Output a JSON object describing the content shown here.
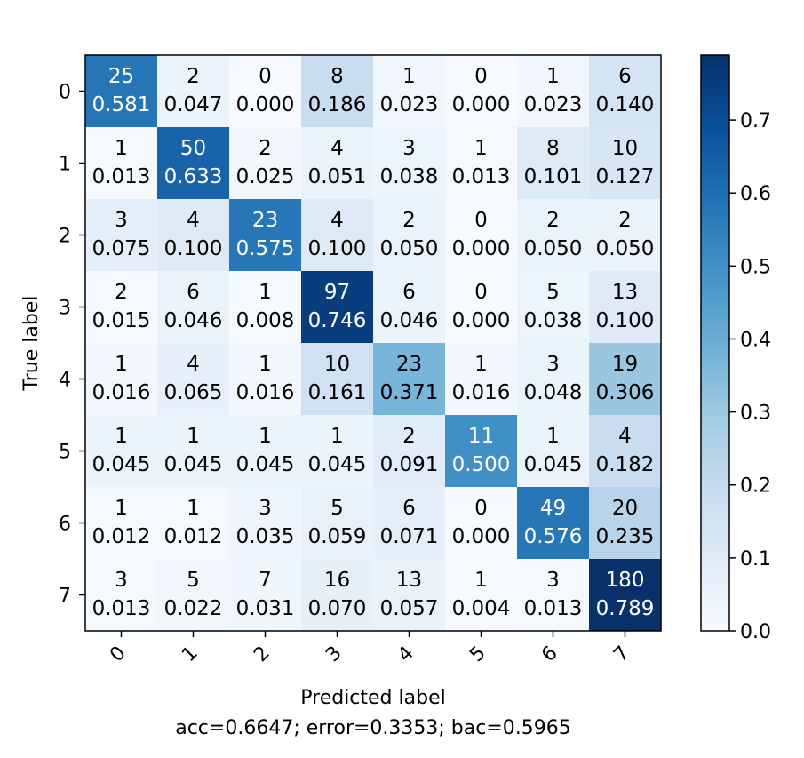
{
  "chart_data": {
    "type": "heatmap",
    "title": "",
    "xlabel": "Predicted label",
    "ylabel": "True label",
    "caption": "acc=0.6647; error=0.3353; bac=0.5965",
    "x_tick_labels": [
      "0",
      "1",
      "2",
      "3",
      "4",
      "5",
      "6",
      "7"
    ],
    "y_tick_labels": [
      "0",
      "1",
      "2",
      "3",
      "4",
      "5",
      "6",
      "7"
    ],
    "counts": [
      [
        25,
        2,
        0,
        8,
        1,
        0,
        1,
        6
      ],
      [
        1,
        50,
        2,
        4,
        3,
        1,
        8,
        10
      ],
      [
        3,
        4,
        23,
        4,
        2,
        0,
        2,
        2
      ],
      [
        2,
        6,
        1,
        97,
        6,
        0,
        5,
        13
      ],
      [
        1,
        4,
        1,
        10,
        23,
        1,
        3,
        19
      ],
      [
        1,
        1,
        1,
        1,
        2,
        11,
        1,
        4
      ],
      [
        1,
        1,
        3,
        5,
        6,
        0,
        49,
        20
      ],
      [
        3,
        5,
        7,
        16,
        13,
        1,
        3,
        180
      ]
    ],
    "fractions": [
      [
        "0.581",
        "0.047",
        "0.000",
        "0.186",
        "0.023",
        "0.000",
        "0.023",
        "0.140"
      ],
      [
        "0.013",
        "0.633",
        "0.025",
        "0.051",
        "0.038",
        "0.013",
        "0.101",
        "0.127"
      ],
      [
        "0.075",
        "0.100",
        "0.575",
        "0.100",
        "0.050",
        "0.000",
        "0.050",
        "0.050"
      ],
      [
        "0.015",
        "0.046",
        "0.008",
        "0.746",
        "0.046",
        "0.000",
        "0.038",
        "0.100"
      ],
      [
        "0.016",
        "0.065",
        "0.016",
        "0.161",
        "0.371",
        "0.016",
        "0.048",
        "0.306"
      ],
      [
        "0.045",
        "0.045",
        "0.045",
        "0.045",
        "0.091",
        "0.500",
        "0.045",
        "0.182"
      ],
      [
        "0.012",
        "0.012",
        "0.035",
        "0.059",
        "0.071",
        "0.000",
        "0.576",
        "0.235"
      ],
      [
        "0.013",
        "0.022",
        "0.031",
        "0.070",
        "0.057",
        "0.004",
        "0.013",
        "0.789"
      ]
    ],
    "colorbar": {
      "colormap": "Blues",
      "range": [
        0.0,
        0.789
      ],
      "ticks": [
        "0.0",
        "0.1",
        "0.2",
        "0.3",
        "0.4",
        "0.5",
        "0.6",
        "0.7"
      ]
    },
    "text_color_threshold": 0.4
  }
}
